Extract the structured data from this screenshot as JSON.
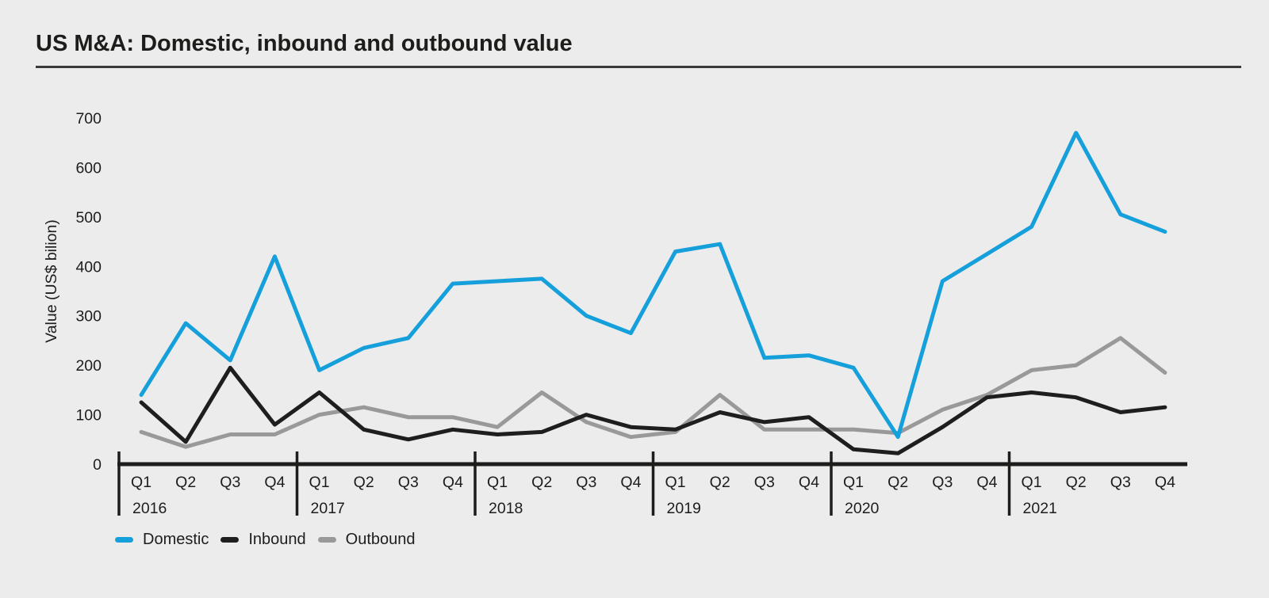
{
  "title": "US M&A: Domestic, inbound and outbound value",
  "colors": {
    "background": "#ececec",
    "text": "#1d1d1b",
    "axis": "#1d1d1b",
    "title_rule": "#3a3a3a",
    "domestic": "#16a0db",
    "inbound": "#1e1e1e",
    "outbound": "#999999"
  },
  "legend": {
    "items": [
      {
        "label": "Domestic",
        "color": "#16a0db"
      },
      {
        "label": "Inbound",
        "color": "#1e1e1e"
      },
      {
        "label": "Outbound",
        "color": "#999999"
      }
    ]
  },
  "chart_data": {
    "type": "line",
    "title": "US M&A: Domestic, inbound and outbound value",
    "xlabel": "",
    "ylabel": "Value (US$ bilion)",
    "ylim": [
      0,
      700
    ],
    "yticks": [
      0,
      100,
      200,
      300,
      400,
      500,
      600,
      700
    ],
    "grid": false,
    "legend_position": "bottom-left",
    "years": [
      "2016",
      "2017",
      "2018",
      "2019",
      "2020",
      "2021"
    ],
    "quarters": [
      "Q1",
      "Q2",
      "Q3",
      "Q4"
    ],
    "series": [
      {
        "name": "Domestic",
        "color": "#16a0db",
        "values": [
          140,
          285,
          210,
          420,
          190,
          235,
          255,
          365,
          370,
          375,
          300,
          265,
          430,
          445,
          215,
          220,
          195,
          55,
          370,
          425,
          480,
          670,
          505,
          470
        ]
      },
      {
        "name": "Inbound",
        "color": "#1e1e1e",
        "values": [
          125,
          45,
          195,
          80,
          145,
          70,
          50,
          70,
          60,
          65,
          100,
          75,
          70,
          105,
          85,
          95,
          30,
          22,
          75,
          135,
          145,
          135,
          105,
          115
        ]
      },
      {
        "name": "Outbound",
        "color": "#999999",
        "values": [
          65,
          35,
          60,
          60,
          100,
          115,
          95,
          95,
          75,
          145,
          85,
          55,
          65,
          140,
          70,
          70,
          70,
          63,
          110,
          140,
          190,
          200,
          255,
          185
        ]
      }
    ]
  }
}
